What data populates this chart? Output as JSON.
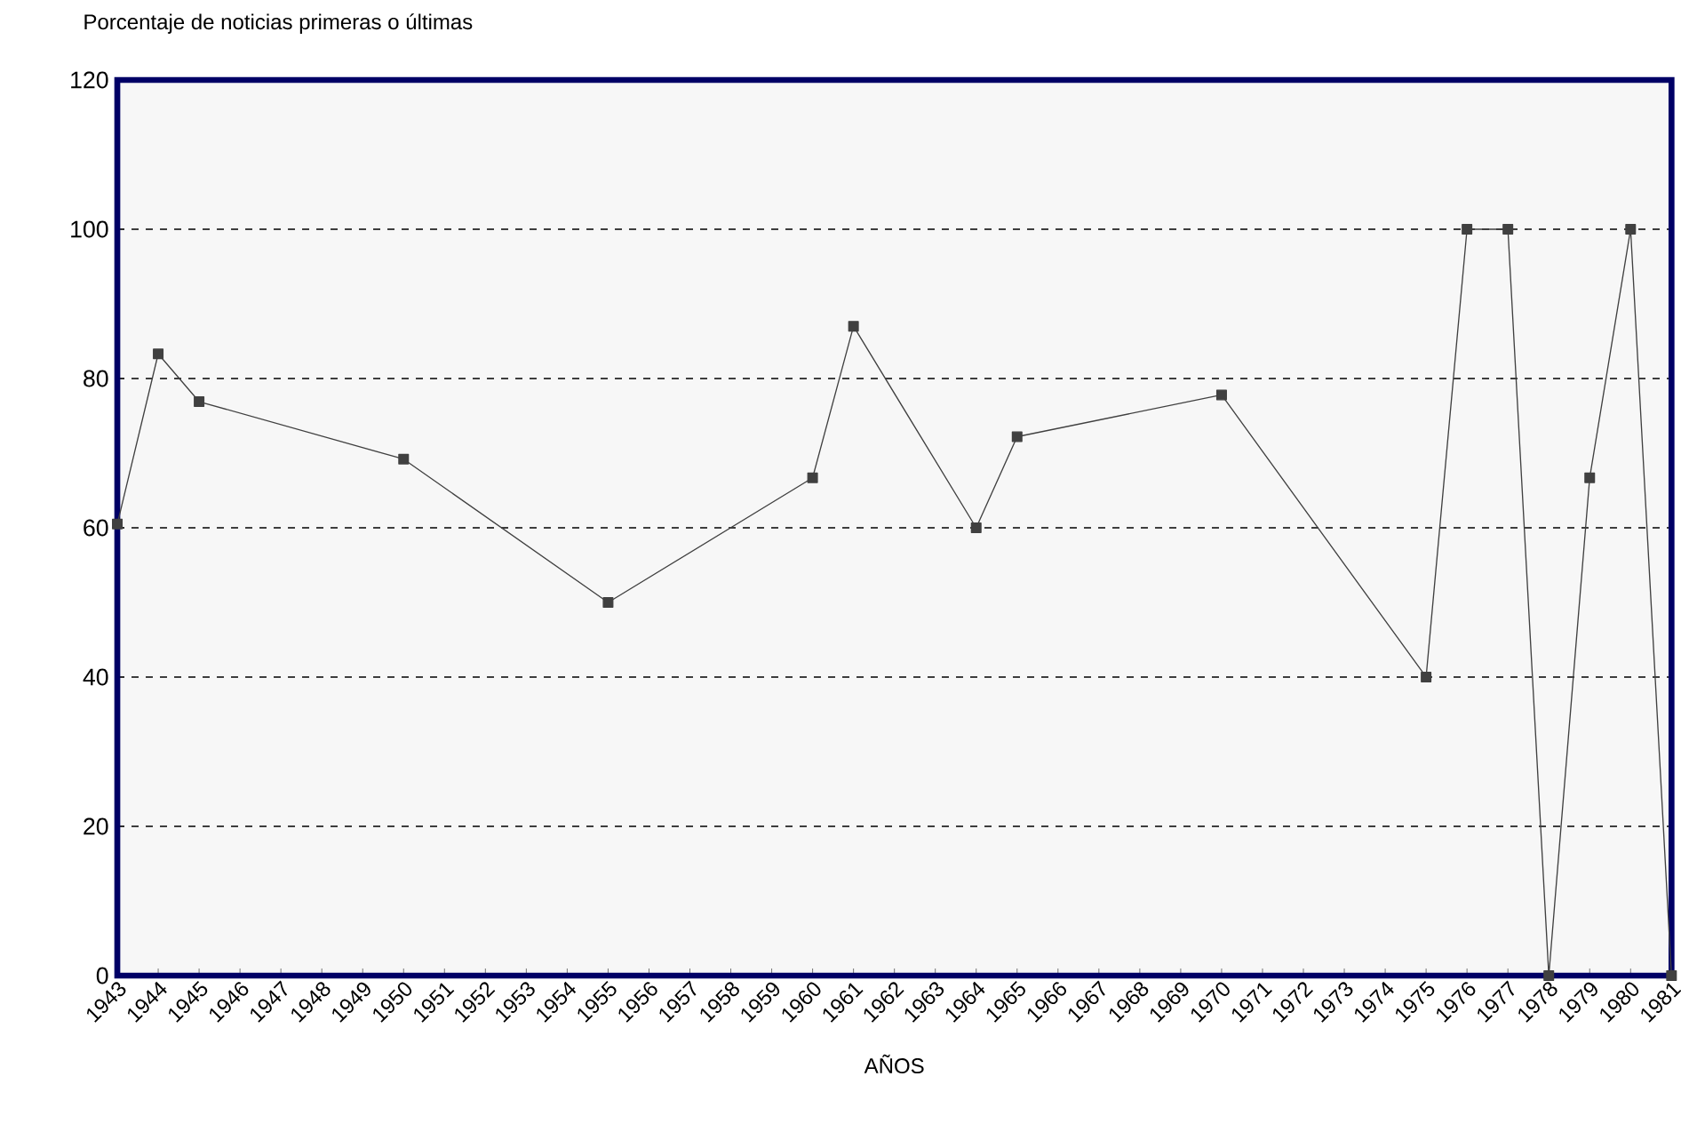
{
  "chart_data": {
    "type": "line",
    "title": "Porcentaje de noticias primeras o últimas",
    "xlabel": "AÑOS",
    "x": [
      1943,
      1944,
      1945,
      1950,
      1955,
      1960,
      1961,
      1964,
      1965,
      1970,
      1975,
      1976,
      1977,
      1978,
      1979,
      1980,
      1981
    ],
    "values": [
      60.5,
      83.3,
      76.9,
      69.2,
      50,
      66.7,
      87,
      60,
      72.2,
      77.8,
      40,
      100,
      100,
      0,
      66.7,
      100,
      0
    ],
    "color": "#404040",
    "marker": "square",
    "line_style": "solid",
    "grid": "y",
    "xlim": [
      1943,
      1981
    ],
    "xticks": [
      1943,
      1944,
      1945,
      1946,
      1947,
      1948,
      1949,
      1950,
      1951,
      1952,
      1953,
      1954,
      1955,
      1956,
      1957,
      1958,
      1959,
      1960,
      1961,
      1962,
      1963,
      1964,
      1965,
      1966,
      1967,
      1968,
      1969,
      1970,
      1971,
      1972,
      1973,
      1974,
      1975,
      1976,
      1977,
      1978,
      1979,
      1980,
      1981
    ],
    "ylim": [
      0,
      120
    ],
    "yticks": [
      0,
      20,
      40,
      60,
      80,
      100,
      120
    ]
  }
}
